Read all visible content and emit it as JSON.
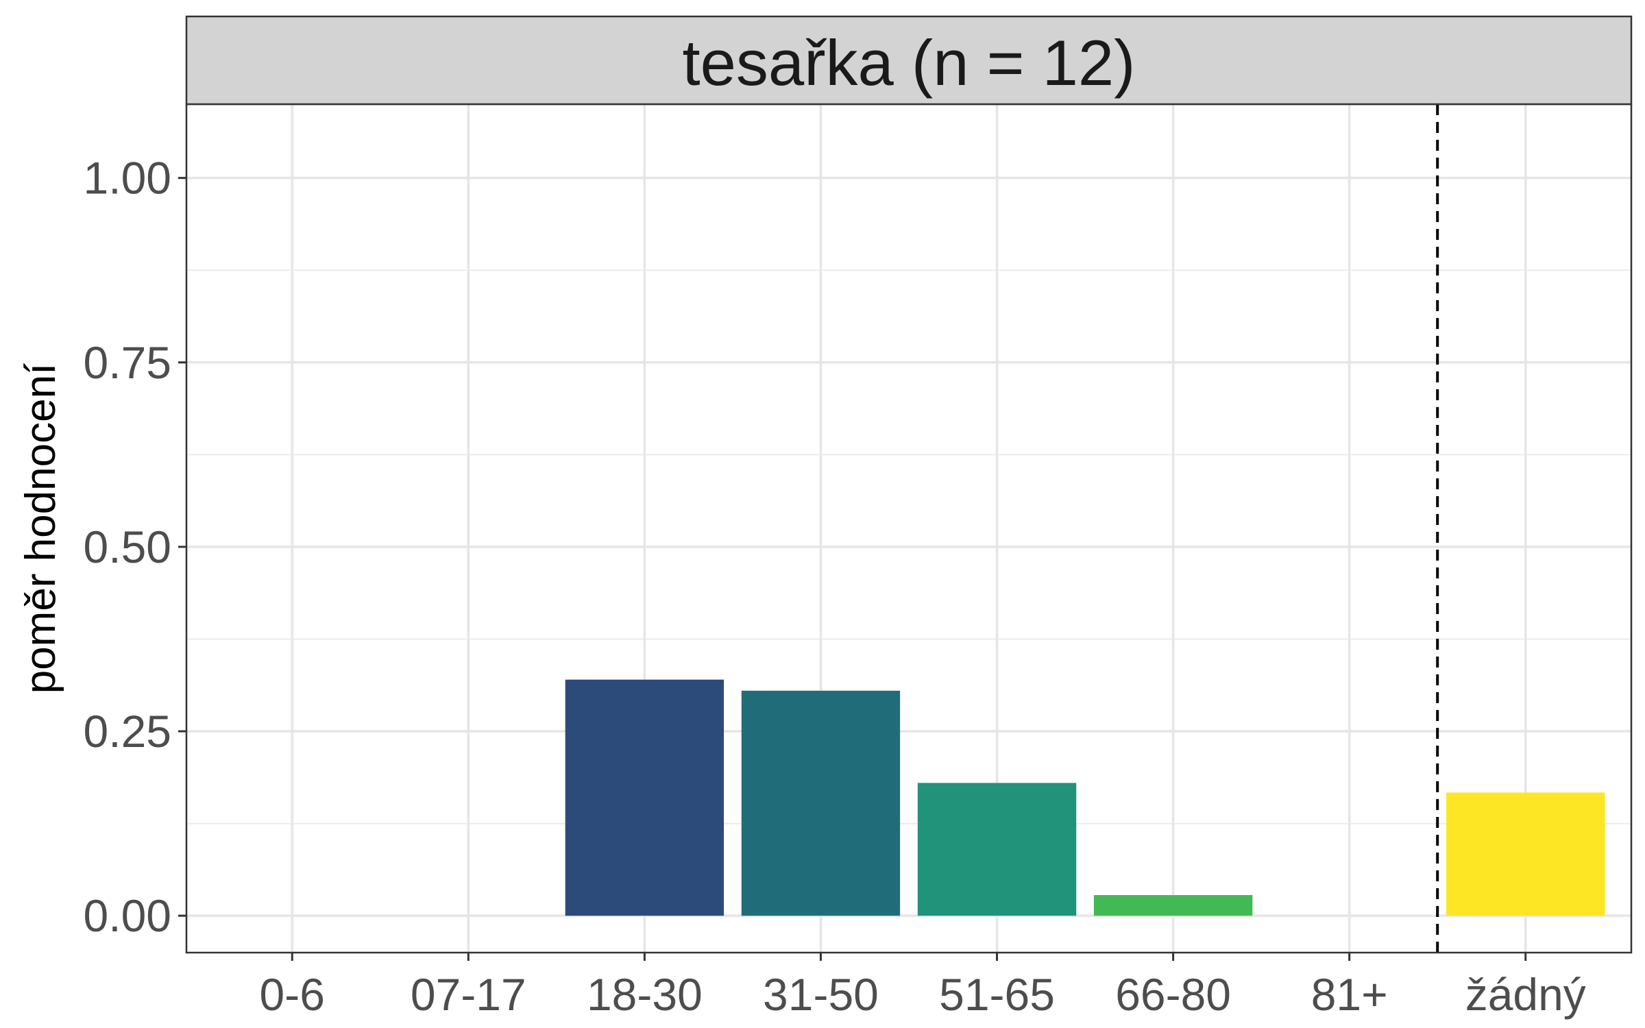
{
  "chart_data": {
    "type": "bar",
    "title": "tesařka (n = 12)",
    "xlabel": "",
    "ylabel": "poměr hodnocení",
    "categories": [
      "0-6",
      "07-17",
      "18-30",
      "31-50",
      "51-65",
      "66-80",
      "81+",
      "žádný"
    ],
    "values": [
      0,
      0,
      0.32,
      0.305,
      0.18,
      0.028,
      0,
      0.167
    ],
    "colors": [
      "#440154",
      "#46327e",
      "#2c4a7a",
      "#206d79",
      "#20937a",
      "#43b956",
      "#8fd744",
      "#fde725"
    ],
    "ylim": [
      -0.05,
      1.1
    ],
    "yticks": [
      "0.00",
      "0.25",
      "0.50",
      "0.75",
      "1.00"
    ],
    "ytick_values": [
      0,
      0.25,
      0.5,
      0.75,
      1.0
    ],
    "grid": true,
    "separator": "dashed line between 81+ and žádný",
    "legend": "none"
  }
}
